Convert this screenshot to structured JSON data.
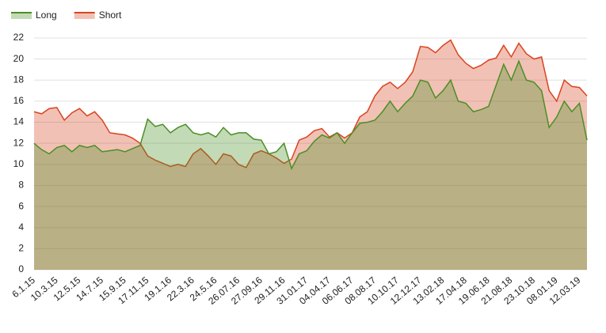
{
  "chart_data": {
    "type": "area",
    "categories": [
      "6.1.15",
      null,
      null,
      "10.3.15",
      null,
      null,
      "12.5.15",
      null,
      null,
      "14.7.15",
      null,
      null,
      "15.9.15",
      null,
      null,
      "17.11.15",
      null,
      null,
      "19.1.16",
      null,
      null,
      "22.3.16",
      null,
      null,
      "24.5.16",
      null,
      null,
      "26.07.16",
      null,
      null,
      "27.09.16",
      null,
      null,
      "29.11.16",
      null,
      null,
      "31.01.17",
      null,
      null,
      "04.04.17",
      null,
      null,
      "06.06.17",
      null,
      null,
      "08.08.17",
      null,
      null,
      "10.10.17",
      null,
      null,
      "12.12.17",
      null,
      null,
      "13.02.18",
      null,
      null,
      "17.04.18",
      null,
      null,
      "19.06.18",
      null,
      null,
      "21.08.18",
      null,
      null,
      "23.10.18",
      null,
      null,
      "08.01.19",
      null,
      null,
      "12.03.19",
      null
    ],
    "series": [
      {
        "name": "Long",
        "color": "#4a8f25",
        "values": [
          12,
          11.4,
          11,
          11.6,
          11.8,
          11.2,
          11.8,
          11.6,
          11.8,
          11.2,
          11.3,
          11.4,
          11.2,
          11.5,
          11.8,
          14.3,
          13.6,
          13.8,
          13,
          13.5,
          13.8,
          13,
          12.8,
          13,
          12.6,
          13.5,
          12.8,
          13,
          13,
          12.4,
          12.3,
          11,
          11.2,
          12,
          9.6,
          11,
          11.3,
          12.2,
          12.8,
          12.5,
          13,
          12,
          13,
          13.9,
          14,
          14.2,
          15,
          16,
          15,
          15.8,
          16.5,
          18,
          17.8,
          16.3,
          17,
          18,
          16,
          15.8,
          15,
          15.2,
          15.5,
          17.5,
          19.5,
          18,
          19.8,
          18,
          17.8,
          17,
          13.5,
          14.5,
          16,
          15,
          15.8,
          12.3
        ]
      },
      {
        "name": "Short",
        "color": "#d9441f",
        "values": [
          15,
          14.8,
          15.3,
          15.4,
          14.2,
          14.9,
          15.3,
          14.6,
          15,
          14.2,
          13,
          12.9,
          12.8,
          12.5,
          12,
          10.8,
          10.4,
          10.1,
          9.8,
          10,
          9.8,
          11,
          11.5,
          10.8,
          10,
          11,
          10.8,
          10,
          9.7,
          11,
          11.3,
          11,
          10.6,
          10.1,
          10.5,
          12.3,
          12.6,
          13.2,
          13.4,
          12.6,
          13,
          12.5,
          13,
          14.5,
          15,
          16.5,
          17.4,
          17.8,
          17.2,
          17.8,
          18.8,
          21.2,
          21.1,
          20.6,
          21.3,
          21.8,
          20.4,
          19.6,
          19.1,
          19.4,
          19.9,
          20.1,
          21.3,
          20.2,
          21.5,
          20.5,
          20,
          20.2,
          17,
          16,
          18,
          17.4,
          17.3,
          16.5
        ]
      }
    ],
    "ylim": [
      0,
      22
    ],
    "yticks": [
      0,
      2,
      4,
      6,
      8,
      10,
      12,
      14,
      16,
      18,
      20,
      22
    ],
    "grid": true,
    "legend": "top-left"
  }
}
